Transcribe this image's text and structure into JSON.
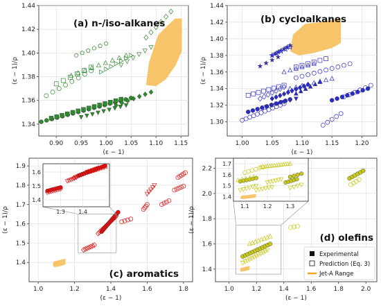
{
  "figure": {
    "legend": {
      "experimental": "Experimental",
      "prediction": "Prediction (Eq. 3)",
      "jet_range": "Jet-A Range"
    },
    "colors": {
      "alkanes": "#2e8b2e",
      "cyclo": "#2b2bcc",
      "aromatics": "#e01010",
      "olefins": "#c8c81a",
      "jet": "#f7c46a"
    }
  },
  "chart_data": [
    {
      "type": "scatter",
      "title": "(a) n-/iso-alkanes",
      "xlabel": "(ε − 1)",
      "ylabel": "(ε − 1)/ρ",
      "xlim": [
        0.865,
        1.165
      ],
      "ylim": [
        1.33,
        1.44
      ],
      "xticks": [
        "0.90",
        "0.95",
        "1.00",
        "1.05",
        "1.10",
        "1.15"
      ],
      "yticks": [
        "1.34",
        "1.36",
        "1.38",
        "1.40",
        "1.42",
        "1.44"
      ],
      "grid": true,
      "color": "#2e8b2e",
      "jet_polygon": [
        [
          1.08,
          1.373
        ],
        [
          1.086,
          1.392
        ],
        [
          1.104,
          1.415
        ],
        [
          1.123,
          1.423
        ],
        [
          1.138,
          1.429
        ],
        [
          1.152,
          1.429
        ],
        [
          1.152,
          1.402
        ],
        [
          1.14,
          1.39
        ],
        [
          1.12,
          1.378
        ],
        [
          1.1,
          1.372
        ]
      ],
      "series": [
        {
          "filled": true,
          "x0": 0.87,
          "x1": 1.05,
          "y0": 1.342,
          "y1": 1.362,
          "n": 18,
          "marker": "o"
        },
        {
          "filled": true,
          "x0": 0.89,
          "x1": 1.03,
          "y0": 1.345,
          "y1": 1.361,
          "n": 14,
          "marker": "s"
        },
        {
          "filled": true,
          "x0": 0.95,
          "x1": 1.04,
          "y0": 1.346,
          "y1": 1.356,
          "n": 9,
          "marker": "v"
        },
        {
          "filled": true,
          "x0": 1.02,
          "x1": 1.09,
          "y0": 1.356,
          "y1": 1.367,
          "n": 7,
          "marker": "d"
        },
        {
          "filled": false,
          "x0": 0.88,
          "x1": 0.97,
          "y0": 1.364,
          "y1": 1.385,
          "n": 8,
          "marker": "o"
        },
        {
          "filled": false,
          "x0": 0.9,
          "x1": 0.97,
          "y0": 1.374,
          "y1": 1.388,
          "n": 6,
          "marker": "s"
        },
        {
          "filled": false,
          "x0": 0.93,
          "x1": 1.04,
          "y0": 1.381,
          "y1": 1.398,
          "n": 9,
          "marker": "^"
        },
        {
          "filled": false,
          "x0": 0.94,
          "x1": 1.0,
          "y0": 1.398,
          "y1": 1.408,
          "n": 6,
          "marker": "p"
        },
        {
          "filled": false,
          "x0": 0.99,
          "x1": 1.05,
          "y0": 1.384,
          "y1": 1.398,
          "n": 7,
          "marker": ">"
        },
        {
          "filled": false,
          "x0": 1.03,
          "x1": 1.09,
          "y0": 1.39,
          "y1": 1.405,
          "n": 6,
          "marker": "v"
        },
        {
          "filled": false,
          "x0": 1.08,
          "x1": 1.13,
          "y0": 1.413,
          "y1": 1.435,
          "n": 6,
          "marker": "d"
        }
      ]
    },
    {
      "type": "scatter",
      "title": "(b) cycloalkanes",
      "xlabel": "(ε − 1)",
      "ylabel": "(ε − 1)/ρ",
      "xlim": [
        0.975,
        1.225
      ],
      "ylim": [
        1.283,
        1.44
      ],
      "xticks": [
        "1.00",
        "1.05",
        "1.10",
        "1.15",
        "1.20"
      ],
      "yticks": [
        "1.30",
        "1.32",
        "1.34",
        "1.36",
        "1.38",
        "1.40",
        "1.42",
        "1.44"
      ],
      "grid": true,
      "color": "#2b2bcc",
      "jet_polygon": [
        [
          1.08,
          1.385
        ],
        [
          1.085,
          1.405
        ],
        [
          1.105,
          1.418
        ],
        [
          1.13,
          1.42
        ],
        [
          1.155,
          1.423
        ],
        [
          1.165,
          1.424
        ],
        [
          1.165,
          1.395
        ],
        [
          1.15,
          1.389
        ],
        [
          1.12,
          1.383
        ],
        [
          1.095,
          1.38
        ]
      ],
      "series": [
        {
          "filled": false,
          "x0": 1.0,
          "x1": 1.07,
          "y0": 1.302,
          "y1": 1.322,
          "n": 12,
          "marker": "o"
        },
        {
          "filled": true,
          "x0": 1.01,
          "x1": 1.08,
          "y0": 1.312,
          "y1": 1.327,
          "n": 10,
          "marker": "o"
        },
        {
          "filled": true,
          "x0": 1.04,
          "x1": 1.09,
          "y0": 1.318,
          "y1": 1.328,
          "n": 6,
          "marker": "v"
        },
        {
          "filled": false,
          "x0": 1.03,
          "x1": 1.07,
          "y0": 1.328,
          "y1": 1.342,
          "n": 7,
          "marker": "d"
        },
        {
          "filled": true,
          "x0": 1.05,
          "x1": 1.11,
          "y0": 1.328,
          "y1": 1.345,
          "n": 10,
          "marker": "d"
        },
        {
          "filled": false,
          "x0": 1.01,
          "x1": 1.07,
          "y0": 1.332,
          "y1": 1.344,
          "n": 8,
          "marker": "s"
        },
        {
          "filled": true,
          "x0": 1.09,
          "x1": 1.13,
          "y0": 1.334,
          "y1": 1.348,
          "n": 6,
          "marker": "^"
        },
        {
          "filled": false,
          "x0": 1.08,
          "x1": 1.15,
          "y0": 1.34,
          "y1": 1.352,
          "n": 8,
          "marker": "^"
        },
        {
          "filled": false,
          "x0": 1.09,
          "x1": 1.18,
          "y0": 1.353,
          "y1": 1.37,
          "n": 10,
          "marker": "o"
        },
        {
          "filled": false,
          "x0": 1.07,
          "x1": 1.12,
          "y0": 1.36,
          "y1": 1.37,
          "n": 6,
          "marker": "^"
        },
        {
          "filled": false,
          "x0": 1.09,
          "x1": 1.14,
          "y0": 1.366,
          "y1": 1.376,
          "n": 6,
          "marker": "s"
        },
        {
          "filled": true,
          "x0": 1.03,
          "x1": 1.06,
          "y0": 1.367,
          "y1": 1.378,
          "n": 4,
          "marker": "*"
        },
        {
          "filled": true,
          "x0": 1.05,
          "x1": 1.08,
          "y0": 1.38,
          "y1": 1.392,
          "n": 7,
          "marker": "*"
        },
        {
          "filled": false,
          "x0": 1.05,
          "x1": 1.08,
          "y0": 1.38,
          "y1": 1.39,
          "n": 5,
          "marker": "*"
        },
        {
          "filled": true,
          "x0": 1.15,
          "x1": 1.21,
          "y0": 1.326,
          "y1": 1.34,
          "n": 8,
          "marker": "o"
        },
        {
          "filled": false,
          "x0": 1.17,
          "x1": 1.215,
          "y0": 1.33,
          "y1": 1.344,
          "n": 6,
          "marker": "o"
        },
        {
          "filled": false,
          "x0": 1.135,
          "x1": 1.165,
          "y0": 1.296,
          "y1": 1.31,
          "n": 5,
          "marker": "o"
        }
      ]
    },
    {
      "type": "scatter",
      "title": "(c) aromatics",
      "xlabel": "(ε − 1)",
      "ylabel": "(ε − 1)/ρ",
      "xlim": [
        0.95,
        1.85
      ],
      "ylim": [
        1.3,
        1.94
      ],
      "xticks": [
        "1.0",
        "1.2",
        "1.4",
        "1.6",
        "1.8"
      ],
      "yticks": [
        "1.4",
        "1.5",
        "1.6",
        "1.7",
        "1.8",
        "1.9"
      ],
      "grid": true,
      "color": "#e01010",
      "jet_polygon": [
        [
          1.08,
          1.385
        ],
        [
          1.085,
          1.405
        ],
        [
          1.11,
          1.41
        ],
        [
          1.15,
          1.42
        ],
        [
          1.15,
          1.39
        ],
        [
          1.12,
          1.38
        ],
        [
          1.09,
          1.375
        ]
      ],
      "series": [
        {
          "filled": false,
          "x0": 1.25,
          "x1": 1.31,
          "y0": 1.465,
          "y1": 1.49,
          "n": 7,
          "marker": "d"
        },
        {
          "filled": false,
          "x0": 1.33,
          "x1": 1.43,
          "y0": 1.55,
          "y1": 1.64,
          "n": 16,
          "marker": "d"
        },
        {
          "filled": true,
          "x0": 1.35,
          "x1": 1.44,
          "y0": 1.56,
          "y1": 1.66,
          "n": 12,
          "marker": "o"
        },
        {
          "filled": false,
          "x0": 1.46,
          "x1": 1.51,
          "y0": 1.61,
          "y1": 1.625,
          "n": 4,
          "marker": "o"
        },
        {
          "filled": false,
          "x0": 1.58,
          "x1": 1.6,
          "y0": 1.675,
          "y1": 1.7,
          "n": 4,
          "marker": "o"
        },
        {
          "filled": false,
          "x0": 1.6,
          "x1": 1.64,
          "y0": 1.755,
          "y1": 1.8,
          "n": 5,
          "marker": "v"
        },
        {
          "filled": false,
          "x0": 1.68,
          "x1": 1.72,
          "y0": 1.7,
          "y1": 1.72,
          "n": 4,
          "marker": "o"
        },
        {
          "filled": false,
          "x0": 1.75,
          "x1": 1.8,
          "y0": 1.775,
          "y1": 1.795,
          "n": 5,
          "marker": "o"
        },
        {
          "filled": false,
          "x0": 1.77,
          "x1": 1.81,
          "y0": 1.84,
          "y1": 1.865,
          "n": 5,
          "marker": "o"
        }
      ],
      "inset": {
        "xlim": [
          1.22,
          1.52
        ],
        "ylim": [
          1.35,
          1.66
        ],
        "xticks": [
          "1.3",
          "1.4"
        ],
        "yticks": [
          "1.4",
          "1.5",
          "1.6"
        ],
        "zoom_box": [
          [
            1.22,
            1.43
          ],
          [
            1.45,
            1.65
          ]
        ],
        "series": [
          {
            "filled": true,
            "x0": 1.24,
            "x1": 1.3,
            "y0": 1.465,
            "y1": 1.49,
            "n": 8,
            "marker": "o"
          },
          {
            "filled": false,
            "x0": 1.24,
            "x1": 1.3,
            "y0": 1.455,
            "y1": 1.48,
            "n": 8,
            "marker": "d"
          },
          {
            "filled": false,
            "x0": 1.33,
            "x1": 1.37,
            "y0": 1.535,
            "y1": 1.56,
            "n": 6,
            "marker": "v"
          },
          {
            "filled": false,
            "x0": 1.36,
            "x1": 1.47,
            "y0": 1.56,
            "y1": 1.63,
            "n": 14,
            "marker": "d"
          },
          {
            "filled": true,
            "x0": 1.38,
            "x1": 1.5,
            "y0": 1.575,
            "y1": 1.645,
            "n": 14,
            "marker": "o"
          },
          {
            "filled": false,
            "x0": 1.42,
            "x1": 1.5,
            "y0": 1.6,
            "y1": 1.64,
            "n": 8,
            "marker": "s"
          }
        ]
      }
    },
    {
      "type": "scatter",
      "title": "(d) olefins",
      "xlabel": "(ε − 1)",
      "ylabel": "(ε − 1)/ρ",
      "xlim": [
        0.9,
        2.08
      ],
      "ylim": [
        1.3,
        2.28
      ],
      "xticks": [
        "1.0",
        "1.2",
        "1.4",
        "1.6",
        "1.8",
        "2.0"
      ],
      "yticks": [
        "1.4",
        "1.6",
        "1.8",
        "2.0",
        "2.2"
      ],
      "grid": true,
      "color": "#c8c81a",
      "jet_polygon": [
        [
          1.08,
          1.385
        ],
        [
          1.085,
          1.41
        ],
        [
          1.11,
          1.415
        ],
        [
          1.15,
          1.425
        ],
        [
          1.15,
          1.395
        ],
        [
          1.12,
          1.385
        ],
        [
          1.09,
          1.38
        ]
      ],
      "series": [
        {
          "filled": false,
          "x0": 1.1,
          "x1": 1.28,
          "y0": 1.45,
          "y1": 1.55,
          "n": 12,
          "marker": "v"
        },
        {
          "filled": true,
          "x0": 1.1,
          "x1": 1.3,
          "y0": 1.5,
          "y1": 1.6,
          "n": 12,
          "marker": "o"
        },
        {
          "filled": false,
          "x0": 1.15,
          "x1": 1.3,
          "y0": 1.6,
          "y1": 1.66,
          "n": 8,
          "marker": "^"
        },
        {
          "filled": false,
          "x0": 1.45,
          "x1": 1.5,
          "y0": 1.73,
          "y1": 1.74,
          "n": 3,
          "marker": "o"
        },
        {
          "filled": true,
          "x0": 1.88,
          "x1": 1.98,
          "y0": 2.12,
          "y1": 2.18,
          "n": 6,
          "marker": "o"
        },
        {
          "filled": false,
          "x0": 1.89,
          "x1": 1.95,
          "y0": 2.07,
          "y1": 2.11,
          "n": 4,
          "marker": "o"
        }
      ],
      "inset": {
        "xlim": [
          1.05,
          1.38
        ],
        "ylim": [
          1.36,
          1.75
        ],
        "xticks": [
          "1.1",
          "1.2",
          "1.3"
        ],
        "yticks": [
          "1.4",
          "1.5",
          "1.6",
          "1.7"
        ],
        "zoom_box": [
          [
            1.05,
            1.38
          ],
          [
            1.36,
            1.75
          ]
        ],
        "series": [
          {
            "filled": false,
            "x0": 1.08,
            "x1": 1.15,
            "y0": 1.46,
            "y1": 1.5,
            "n": 6,
            "marker": "v"
          },
          {
            "filled": true,
            "x0": 1.08,
            "x1": 1.15,
            "y0": 1.54,
            "y1": 1.57,
            "n": 6,
            "marker": "o"
          },
          {
            "filled": false,
            "x0": 1.07,
            "x1": 1.14,
            "y0": 1.55,
            "y1": 1.58,
            "n": 5,
            "marker": "^"
          },
          {
            "filled": false,
            "x0": 1.1,
            "x1": 1.18,
            "y0": 1.62,
            "y1": 1.67,
            "n": 6,
            "marker": "o"
          },
          {
            "filled": false,
            "x0": 1.17,
            "x1": 1.3,
            "y0": 1.67,
            "y1": 1.7,
            "n": 14,
            "marker": "^"
          },
          {
            "filled": false,
            "x0": 1.15,
            "x1": 1.22,
            "y0": 1.46,
            "y1": 1.49,
            "n": 6,
            "marker": "v"
          },
          {
            "filled": false,
            "x0": 1.2,
            "x1": 1.26,
            "y0": 1.53,
            "y1": 1.56,
            "n": 6,
            "marker": "v"
          },
          {
            "filled": true,
            "x0": 1.28,
            "x1": 1.33,
            "y0": 1.53,
            "y1": 1.56,
            "n": 5,
            "marker": "o"
          },
          {
            "filled": false,
            "x0": 1.3,
            "x1": 1.35,
            "y0": 1.48,
            "y1": 1.51,
            "n": 4,
            "marker": "v"
          },
          {
            "filled": true,
            "x0": 1.3,
            "x1": 1.35,
            "y0": 1.58,
            "y1": 1.61,
            "n": 4,
            "marker": "o"
          }
        ]
      }
    }
  ]
}
